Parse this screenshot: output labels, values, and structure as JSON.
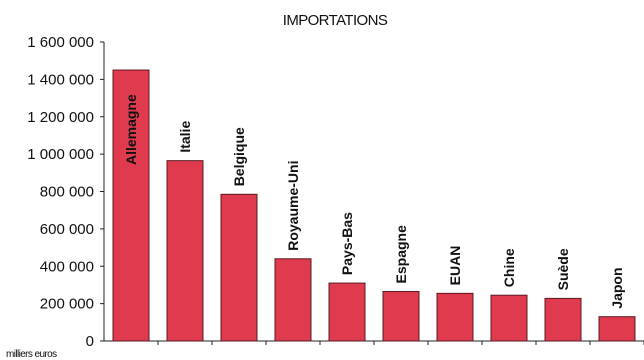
{
  "chart_data": {
    "type": "bar",
    "title": "IMPORTATIONS",
    "ylabel": "milliers euros",
    "xlabel": "",
    "categories": [
      "Allemagne",
      "Italie",
      "Belgique",
      "Royaume-Uni",
      "Pays-Bas",
      "Espagne",
      "EUAN",
      "Chine",
      "Suède",
      "Japon"
    ],
    "values": [
      1450000,
      965000,
      785000,
      440000,
      310000,
      265000,
      255000,
      245000,
      228000,
      130000
    ],
    "ylim": [
      0,
      1600000
    ],
    "yticks": [
      0,
      200000,
      400000,
      600000,
      800000,
      1000000,
      1200000,
      1400000,
      1600000
    ],
    "ytick_labels": [
      "0",
      "200 000",
      "400 000",
      "600 000",
      "800 000",
      "1 000 000",
      "1 200 000",
      "1 400 000",
      "1 600 000"
    ],
    "grid": false,
    "legend": "none",
    "colors": {
      "bar": "#e03a4e",
      "bar_edge": "#5a1a20",
      "axis": "#222222"
    }
  }
}
